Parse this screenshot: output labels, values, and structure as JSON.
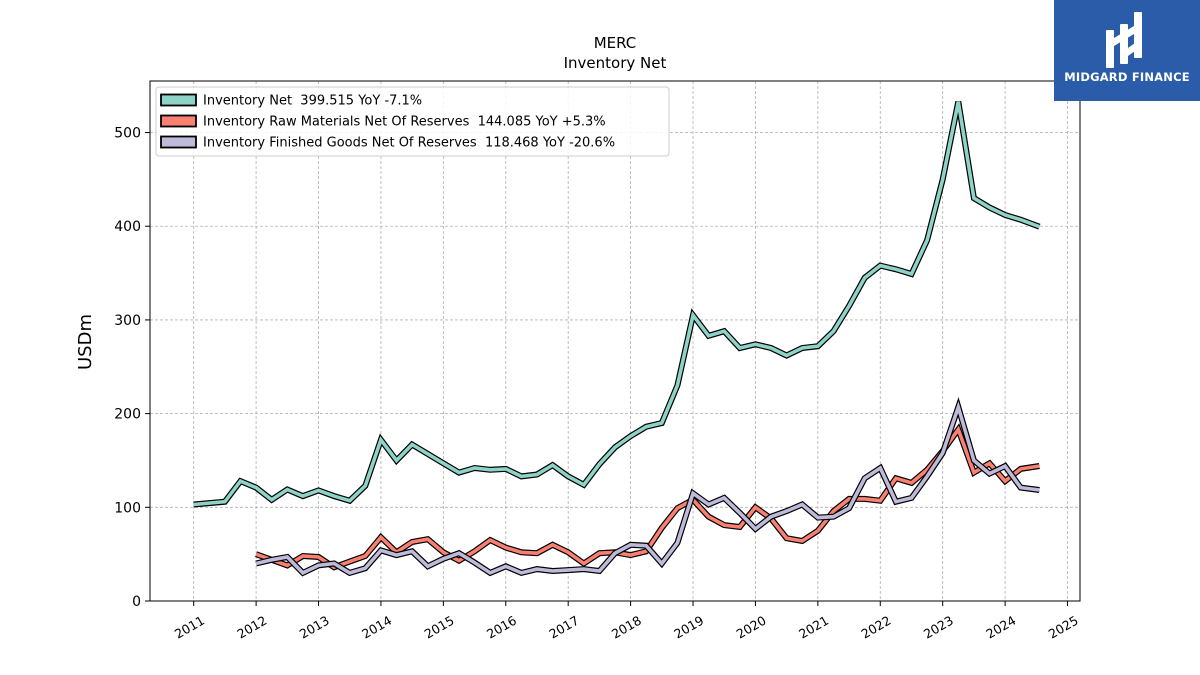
{
  "chart_data": {
    "type": "line",
    "title": "MERC",
    "subtitle": "Inventory Net",
    "ylabel": "USDm",
    "xlabel": "",
    "ylim": [
      0,
      555
    ],
    "xlim": [
      2010.3,
      2025.2
    ],
    "yticks": [
      0,
      100,
      200,
      300,
      400,
      500
    ],
    "xticks": [
      "2011",
      "2012",
      "2013",
      "2014",
      "2015",
      "2016",
      "2017",
      "2018",
      "2019",
      "2020",
      "2021",
      "2022",
      "2023",
      "2024",
      "2025"
    ],
    "grid": true,
    "legend_position": "top-left",
    "series": [
      {
        "name": "Inventory Net  399.515 YoY -7.1%",
        "color": "#8dd3c7",
        "points": [
          [
            2011.0,
            103
          ],
          [
            2011.5,
            106
          ],
          [
            2011.75,
            128
          ],
          [
            2012.0,
            121
          ],
          [
            2012.25,
            108
          ],
          [
            2012.5,
            119
          ],
          [
            2012.75,
            112
          ],
          [
            2013.0,
            118
          ],
          [
            2013.25,
            112
          ],
          [
            2013.5,
            107
          ],
          [
            2013.75,
            123
          ],
          [
            2014.0,
            172
          ],
          [
            2014.25,
            150
          ],
          [
            2014.5,
            167
          ],
          [
            2014.75,
            157
          ],
          [
            2015.0,
            147
          ],
          [
            2015.25,
            137
          ],
          [
            2015.5,
            142
          ],
          [
            2015.75,
            140
          ],
          [
            2016.0,
            141
          ],
          [
            2016.25,
            133
          ],
          [
            2016.5,
            135
          ],
          [
            2016.75,
            145
          ],
          [
            2017.0,
            133
          ],
          [
            2017.25,
            124
          ],
          [
            2017.5,
            146
          ],
          [
            2017.75,
            164
          ],
          [
            2018.0,
            176
          ],
          [
            2018.25,
            186
          ],
          [
            2018.5,
            190
          ],
          [
            2018.75,
            230
          ],
          [
            2019.0,
            305
          ],
          [
            2019.25,
            283
          ],
          [
            2019.5,
            288
          ],
          [
            2019.75,
            270
          ],
          [
            2020.0,
            274
          ],
          [
            2020.25,
            270
          ],
          [
            2020.5,
            262
          ],
          [
            2020.75,
            270
          ],
          [
            2021.0,
            272
          ],
          [
            2021.25,
            288
          ],
          [
            2021.5,
            315
          ],
          [
            2021.75,
            345
          ],
          [
            2022.0,
            358
          ],
          [
            2022.25,
            354
          ],
          [
            2022.5,
            349
          ],
          [
            2022.75,
            385
          ],
          [
            2023.0,
            450
          ],
          [
            2023.25,
            533
          ],
          [
            2023.5,
            430
          ],
          [
            2023.75,
            420
          ],
          [
            2024.0,
            412
          ],
          [
            2024.25,
            407
          ],
          [
            2024.55,
            399.515
          ]
        ]
      },
      {
        "name": "Inventory Raw Materials Net Of Reserves  144.085 YoY +5.3%",
        "color": "#fb8072",
        "points": [
          [
            2012.0,
            50
          ],
          [
            2012.25,
            44
          ],
          [
            2012.5,
            38
          ],
          [
            2012.75,
            48
          ],
          [
            2013.0,
            47
          ],
          [
            2013.25,
            36
          ],
          [
            2013.5,
            42
          ],
          [
            2013.75,
            48
          ],
          [
            2014.0,
            68
          ],
          [
            2014.25,
            52
          ],
          [
            2014.5,
            63
          ],
          [
            2014.75,
            66
          ],
          [
            2015.0,
            52
          ],
          [
            2015.25,
            43
          ],
          [
            2015.5,
            53
          ],
          [
            2015.75,
            65
          ],
          [
            2016.0,
            57
          ],
          [
            2016.25,
            52
          ],
          [
            2016.5,
            51
          ],
          [
            2016.75,
            60
          ],
          [
            2017.0,
            52
          ],
          [
            2017.25,
            40
          ],
          [
            2017.5,
            51
          ],
          [
            2017.75,
            52
          ],
          [
            2018.0,
            49
          ],
          [
            2018.25,
            53
          ],
          [
            2018.5,
            78
          ],
          [
            2018.75,
            99
          ],
          [
            2019.0,
            108
          ],
          [
            2019.25,
            90
          ],
          [
            2019.5,
            81
          ],
          [
            2019.75,
            79
          ],
          [
            2020.0,
            100
          ],
          [
            2020.25,
            88
          ],
          [
            2020.5,
            67
          ],
          [
            2020.75,
            64
          ],
          [
            2021.0,
            75
          ],
          [
            2021.25,
            96
          ],
          [
            2021.5,
            109
          ],
          [
            2021.75,
            109
          ],
          [
            2022.0,
            107
          ],
          [
            2022.25,
            131
          ],
          [
            2022.5,
            126
          ],
          [
            2022.75,
            140
          ],
          [
            2023.0,
            160
          ],
          [
            2023.25,
            183
          ],
          [
            2023.5,
            137
          ],
          [
            2023.75,
            147
          ],
          [
            2024.0,
            128
          ],
          [
            2024.25,
            141
          ],
          [
            2024.55,
            144.085
          ]
        ]
      },
      {
        "name": "Inventory Finished Goods Net Of Reserves  118.468 YoY -20.6%",
        "color": "#bebada",
        "points": [
          [
            2012.0,
            40
          ],
          [
            2012.25,
            44
          ],
          [
            2012.5,
            47
          ],
          [
            2012.75,
            30
          ],
          [
            2013.0,
            38
          ],
          [
            2013.25,
            40
          ],
          [
            2013.5,
            30
          ],
          [
            2013.75,
            35
          ],
          [
            2014.0,
            54
          ],
          [
            2014.25,
            49
          ],
          [
            2014.5,
            53
          ],
          [
            2014.75,
            37
          ],
          [
            2015.0,
            45
          ],
          [
            2015.25,
            51
          ],
          [
            2015.5,
            41
          ],
          [
            2015.75,
            30
          ],
          [
            2016.0,
            37
          ],
          [
            2016.25,
            30
          ],
          [
            2016.5,
            34
          ],
          [
            2016.75,
            32
          ],
          [
            2017.0,
            33
          ],
          [
            2017.25,
            34
          ],
          [
            2017.5,
            32
          ],
          [
            2017.75,
            51
          ],
          [
            2018.0,
            60
          ],
          [
            2018.25,
            59
          ],
          [
            2018.5,
            40
          ],
          [
            2018.75,
            62
          ],
          [
            2019.0,
            115
          ],
          [
            2019.25,
            103
          ],
          [
            2019.5,
            110
          ],
          [
            2019.75,
            94
          ],
          [
            2020.0,
            77
          ],
          [
            2020.25,
            90
          ],
          [
            2020.5,
            96
          ],
          [
            2020.75,
            103
          ],
          [
            2021.0,
            89
          ],
          [
            2021.25,
            90
          ],
          [
            2021.5,
            99
          ],
          [
            2021.75,
            131
          ],
          [
            2022.0,
            142
          ],
          [
            2022.25,
            106
          ],
          [
            2022.5,
            110
          ],
          [
            2022.75,
            133
          ],
          [
            2023.0,
            158
          ],
          [
            2023.25,
            207
          ],
          [
            2023.5,
            150
          ],
          [
            2023.75,
            136
          ],
          [
            2024.0,
            144
          ],
          [
            2024.25,
            121
          ],
          [
            2024.55,
            118.468
          ]
        ]
      }
    ]
  },
  "logo": {
    "text": "MIDGARD FINANCE",
    "color": "#2a5caa"
  }
}
